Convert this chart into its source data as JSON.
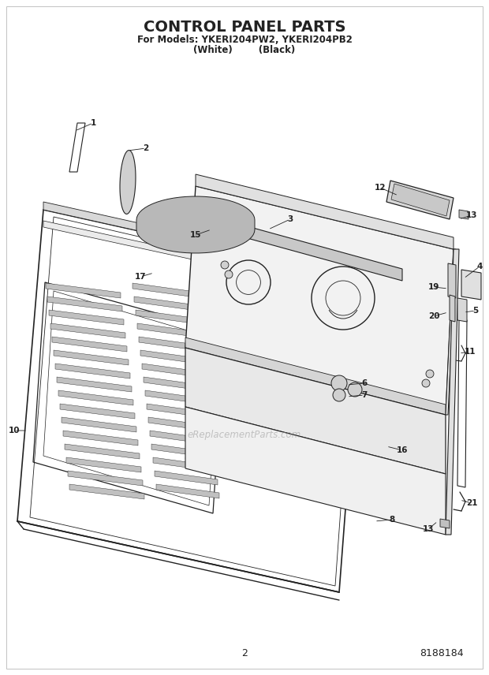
{
  "title": "CONTROL PANEL PARTS",
  "subtitle1": "For Models: YKERI204PW2, YKERI204PB2",
  "subtitle2": "(White)        (Black)",
  "page_num": "2",
  "doc_num": "8188184",
  "watermark": "eReplacementParts.com",
  "bg_color": "#ffffff",
  "line_color": "#222222",
  "title_fontsize": 14,
  "subtitle_fontsize": 8.5,
  "label_fontsize": 7.5
}
